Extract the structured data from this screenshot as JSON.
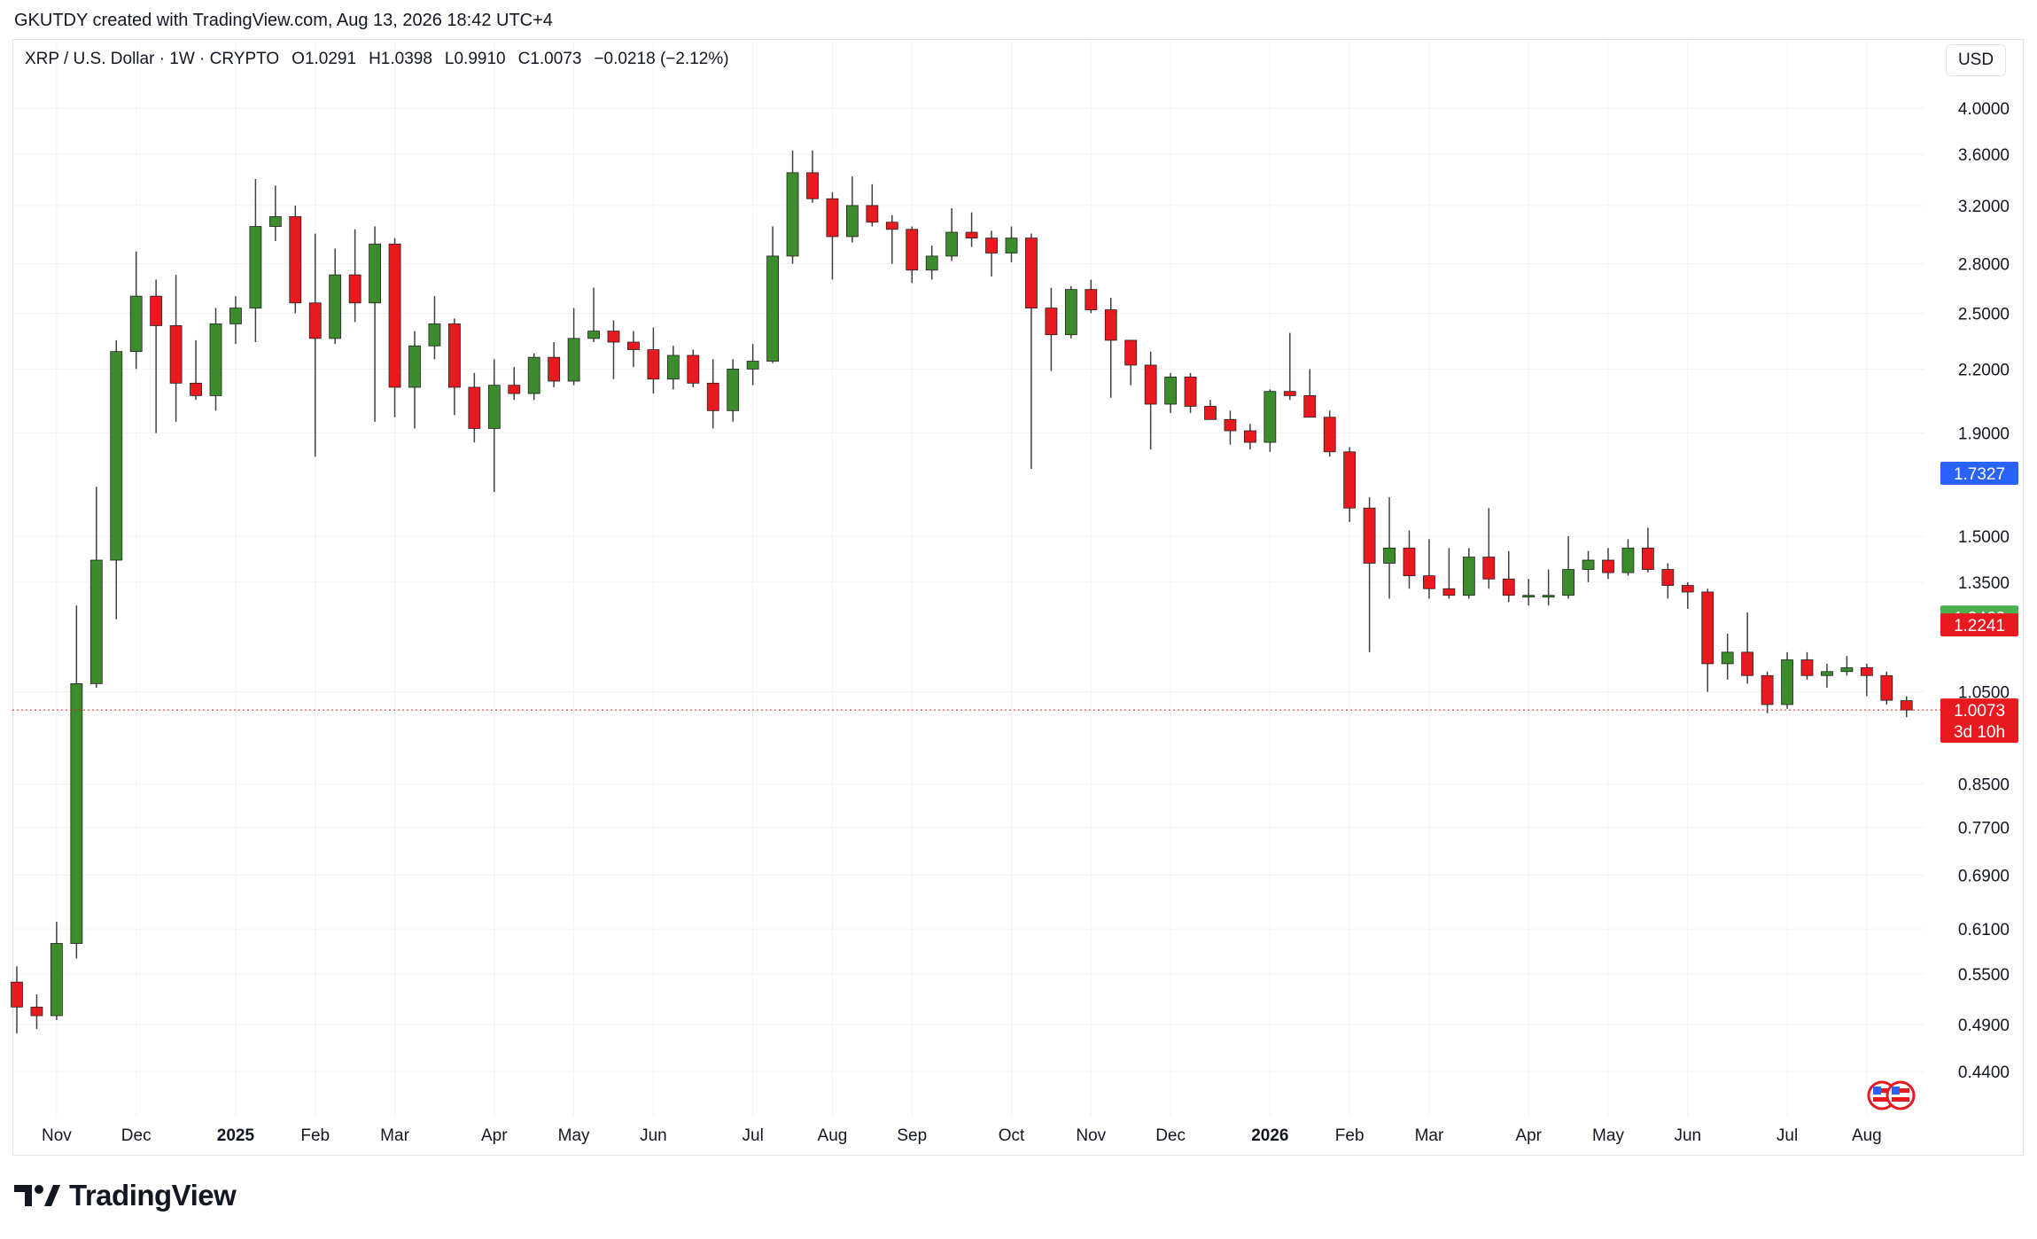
{
  "header": {
    "credit": "GKUTDY created with TradingView.com, Aug 13, 2026 18:42 UTC+4"
  },
  "legend": {
    "symbol": "XRP / U.S. Dollar · 1W · CRYPTO",
    "open": "O1.0291",
    "high": "H1.0398",
    "low": "L0.9910",
    "close": "C1.0073",
    "change": "−0.0218 (−2.12%)"
  },
  "currency_button": "USD",
  "footer": {
    "brand": "TradingView"
  },
  "colors": {
    "up": "#3c8c2e",
    "down": "#e8191f",
    "wick": "#404040",
    "grid": "#f0f3fa",
    "blue": "#2962ff",
    "green": "#4caf50"
  },
  "chart_data": {
    "type": "candlestick",
    "y_scale": "log",
    "ylim": [
      0.4,
      4.2
    ],
    "y_ticks": [
      "4.0000",
      "3.6000",
      "3.2000",
      "2.8000",
      "2.5000",
      "2.2000",
      "1.9000",
      "1.5000",
      "1.3500",
      "1.0500",
      "0.8500",
      "0.7700",
      "0.6900",
      "0.6100",
      "0.5500",
      "0.4900",
      "0.4400"
    ],
    "x_labels": [
      {
        "label": "Nov",
        "bar": 2
      },
      {
        "label": "Dec",
        "bar": 6
      },
      {
        "label": "2025",
        "bar": 11,
        "bold": true
      },
      {
        "label": "Feb",
        "bar": 15
      },
      {
        "label": "Mar",
        "bar": 19
      },
      {
        "label": "Apr",
        "bar": 24
      },
      {
        "label": "May",
        "bar": 28
      },
      {
        "label": "Jun",
        "bar": 32
      },
      {
        "label": "Jul",
        "bar": 37
      },
      {
        "label": "Aug",
        "bar": 41
      },
      {
        "label": "Sep",
        "bar": 45
      },
      {
        "label": "Oct",
        "bar": 50
      },
      {
        "label": "Nov",
        "bar": 54
      },
      {
        "label": "Dec",
        "bar": 58
      },
      {
        "label": "2026",
        "bar": 63,
        "bold": true
      },
      {
        "label": "Feb",
        "bar": 67
      },
      {
        "label": "Mar",
        "bar": 71
      },
      {
        "label": "Apr",
        "bar": 76
      },
      {
        "label": "May",
        "bar": 80
      },
      {
        "label": "Jun",
        "bar": 84
      },
      {
        "label": "Jul",
        "bar": 89
      },
      {
        "label": "Aug",
        "bar": 93
      }
    ],
    "candles": [
      [
        0.54,
        0.56,
        0.48,
        0.51
      ],
      [
        0.51,
        0.525,
        0.485,
        0.5
      ],
      [
        0.5,
        0.62,
        0.495,
        0.59
      ],
      [
        0.59,
        1.28,
        0.57,
        1.07
      ],
      [
        1.07,
        1.68,
        1.06,
        1.42
      ],
      [
        1.42,
        2.35,
        1.24,
        2.29
      ],
      [
        2.29,
        2.88,
        2.2,
        2.6
      ],
      [
        2.6,
        2.7,
        1.9,
        2.43
      ],
      [
        2.43,
        2.73,
        1.95,
        2.13
      ],
      [
        2.13,
        2.35,
        2.05,
        2.07
      ],
      [
        2.07,
        2.53,
        2.0,
        2.44
      ],
      [
        2.44,
        2.6,
        2.33,
        2.53
      ],
      [
        2.53,
        3.4,
        2.34,
        3.05
      ],
      [
        3.05,
        3.35,
        2.95,
        3.12
      ],
      [
        3.12,
        3.2,
        2.5,
        2.56
      ],
      [
        2.56,
        3.0,
        1.8,
        2.36
      ],
      [
        2.36,
        2.9,
        2.33,
        2.73
      ],
      [
        2.73,
        3.03,
        2.45,
        2.56
      ],
      [
        2.56,
        3.05,
        1.95,
        2.93
      ],
      [
        2.93,
        2.97,
        1.97,
        2.11
      ],
      [
        2.11,
        2.4,
        1.92,
        2.32
      ],
      [
        2.32,
        2.6,
        2.25,
        2.44
      ],
      [
        2.44,
        2.47,
        1.98,
        2.11
      ],
      [
        2.11,
        2.18,
        1.86,
        1.92
      ],
      [
        1.92,
        2.25,
        1.66,
        2.12
      ],
      [
        2.12,
        2.21,
        2.05,
        2.08
      ],
      [
        2.08,
        2.28,
        2.05,
        2.26
      ],
      [
        2.26,
        2.34,
        2.11,
        2.14
      ],
      [
        2.14,
        2.53,
        2.12,
        2.36
      ],
      [
        2.36,
        2.65,
        2.34,
        2.4
      ],
      [
        2.4,
        2.46,
        2.15,
        2.34
      ],
      [
        2.34,
        2.4,
        2.21,
        2.3
      ],
      [
        2.3,
        2.42,
        2.08,
        2.15
      ],
      [
        2.15,
        2.32,
        2.1,
        2.27
      ],
      [
        2.27,
        2.3,
        2.11,
        2.13
      ],
      [
        2.13,
        2.25,
        1.92,
        2.0
      ],
      [
        2.0,
        2.25,
        1.95,
        2.2
      ],
      [
        2.2,
        2.33,
        2.12,
        2.24
      ],
      [
        2.24,
        3.05,
        2.23,
        2.85
      ],
      [
        2.85,
        3.63,
        2.8,
        3.45
      ],
      [
        3.45,
        3.63,
        3.22,
        3.25
      ],
      [
        3.25,
        3.3,
        2.7,
        2.98
      ],
      [
        2.98,
        3.42,
        2.94,
        3.2
      ],
      [
        3.2,
        3.36,
        3.05,
        3.08
      ],
      [
        3.08,
        3.13,
        2.8,
        3.03
      ],
      [
        3.03,
        3.05,
        2.68,
        2.76
      ],
      [
        2.76,
        2.92,
        2.7,
        2.85
      ],
      [
        2.85,
        3.18,
        2.82,
        3.01
      ],
      [
        3.01,
        3.15,
        2.91,
        2.97
      ],
      [
        2.97,
        3.02,
        2.72,
        2.87
      ],
      [
        2.87,
        3.05,
        2.81,
        2.97
      ],
      [
        2.97,
        3.0,
        1.75,
        2.53
      ],
      [
        2.53,
        2.65,
        2.19,
        2.38
      ],
      [
        2.38,
        2.66,
        2.36,
        2.64
      ],
      [
        2.64,
        2.7,
        2.5,
        2.52
      ],
      [
        2.52,
        2.59,
        2.06,
        2.35
      ],
      [
        2.35,
        2.32,
        2.12,
        2.22
      ],
      [
        2.22,
        2.29,
        1.83,
        2.03
      ],
      [
        2.03,
        2.18,
        1.99,
        2.16
      ],
      [
        2.16,
        2.18,
        1.99,
        2.02
      ],
      [
        2.02,
        2.05,
        1.97,
        1.96
      ],
      [
        1.96,
        2.0,
        1.85,
        1.91
      ],
      [
        1.91,
        1.94,
        1.83,
        1.86
      ],
      [
        1.86,
        2.1,
        1.82,
        2.09
      ],
      [
        2.09,
        2.39,
        2.05,
        2.07
      ],
      [
        2.07,
        2.2,
        1.97,
        1.97
      ],
      [
        1.97,
        2.0,
        1.8,
        1.82
      ],
      [
        1.82,
        1.84,
        1.55,
        1.6
      ],
      [
        1.6,
        1.64,
        1.15,
        1.41
      ],
      [
        1.41,
        1.64,
        1.3,
        1.46
      ],
      [
        1.46,
        1.52,
        1.33,
        1.37
      ],
      [
        1.37,
        1.49,
        1.3,
        1.33
      ],
      [
        1.33,
        1.46,
        1.3,
        1.31
      ],
      [
        1.31,
        1.46,
        1.3,
        1.43
      ],
      [
        1.43,
        1.6,
        1.33,
        1.36
      ],
      [
        1.36,
        1.45,
        1.29,
        1.31
      ],
      [
        1.31,
        1.36,
        1.28,
        1.31
      ],
      [
        1.31,
        1.39,
        1.28,
        1.31
      ],
      [
        1.31,
        1.5,
        1.3,
        1.39
      ],
      [
        1.39,
        1.45,
        1.35,
        1.42
      ],
      [
        1.42,
        1.46,
        1.36,
        1.38
      ],
      [
        1.38,
        1.49,
        1.37,
        1.46
      ],
      [
        1.46,
        1.53,
        1.38,
        1.39
      ],
      [
        1.39,
        1.41,
        1.3,
        1.34
      ],
      [
        1.34,
        1.35,
        1.27,
        1.32
      ],
      [
        1.32,
        1.33,
        1.05,
        1.12
      ],
      [
        1.12,
        1.2,
        1.08,
        1.15
      ],
      [
        1.15,
        1.26,
        1.07,
        1.09
      ],
      [
        1.09,
        1.1,
        1.0,
        1.02
      ],
      [
        1.02,
        1.15,
        1.01,
        1.13
      ],
      [
        1.13,
        1.15,
        1.08,
        1.09
      ],
      [
        1.09,
        1.12,
        1.06,
        1.1
      ],
      [
        1.1,
        1.14,
        1.09,
        1.11
      ],
      [
        1.11,
        1.12,
        1.04,
        1.09
      ],
      [
        1.09,
        1.1,
        1.02,
        1.03
      ],
      [
        1.0291,
        1.0398,
        0.991,
        1.0073
      ]
    ],
    "price_badges": [
      {
        "label": "1.7327",
        "value": 1.7327,
        "color": "#2962ff"
      },
      {
        "label": "1.2462",
        "value": 1.2462,
        "color": "#4caf50"
      },
      {
        "label": "1.2241",
        "value": 1.2241,
        "color": "#e8191f"
      },
      {
        "label": "1.0073",
        "value": 1.0073,
        "color": "#e8191f",
        "sub": "3d 10h"
      }
    ],
    "last_price": 1.0073
  }
}
